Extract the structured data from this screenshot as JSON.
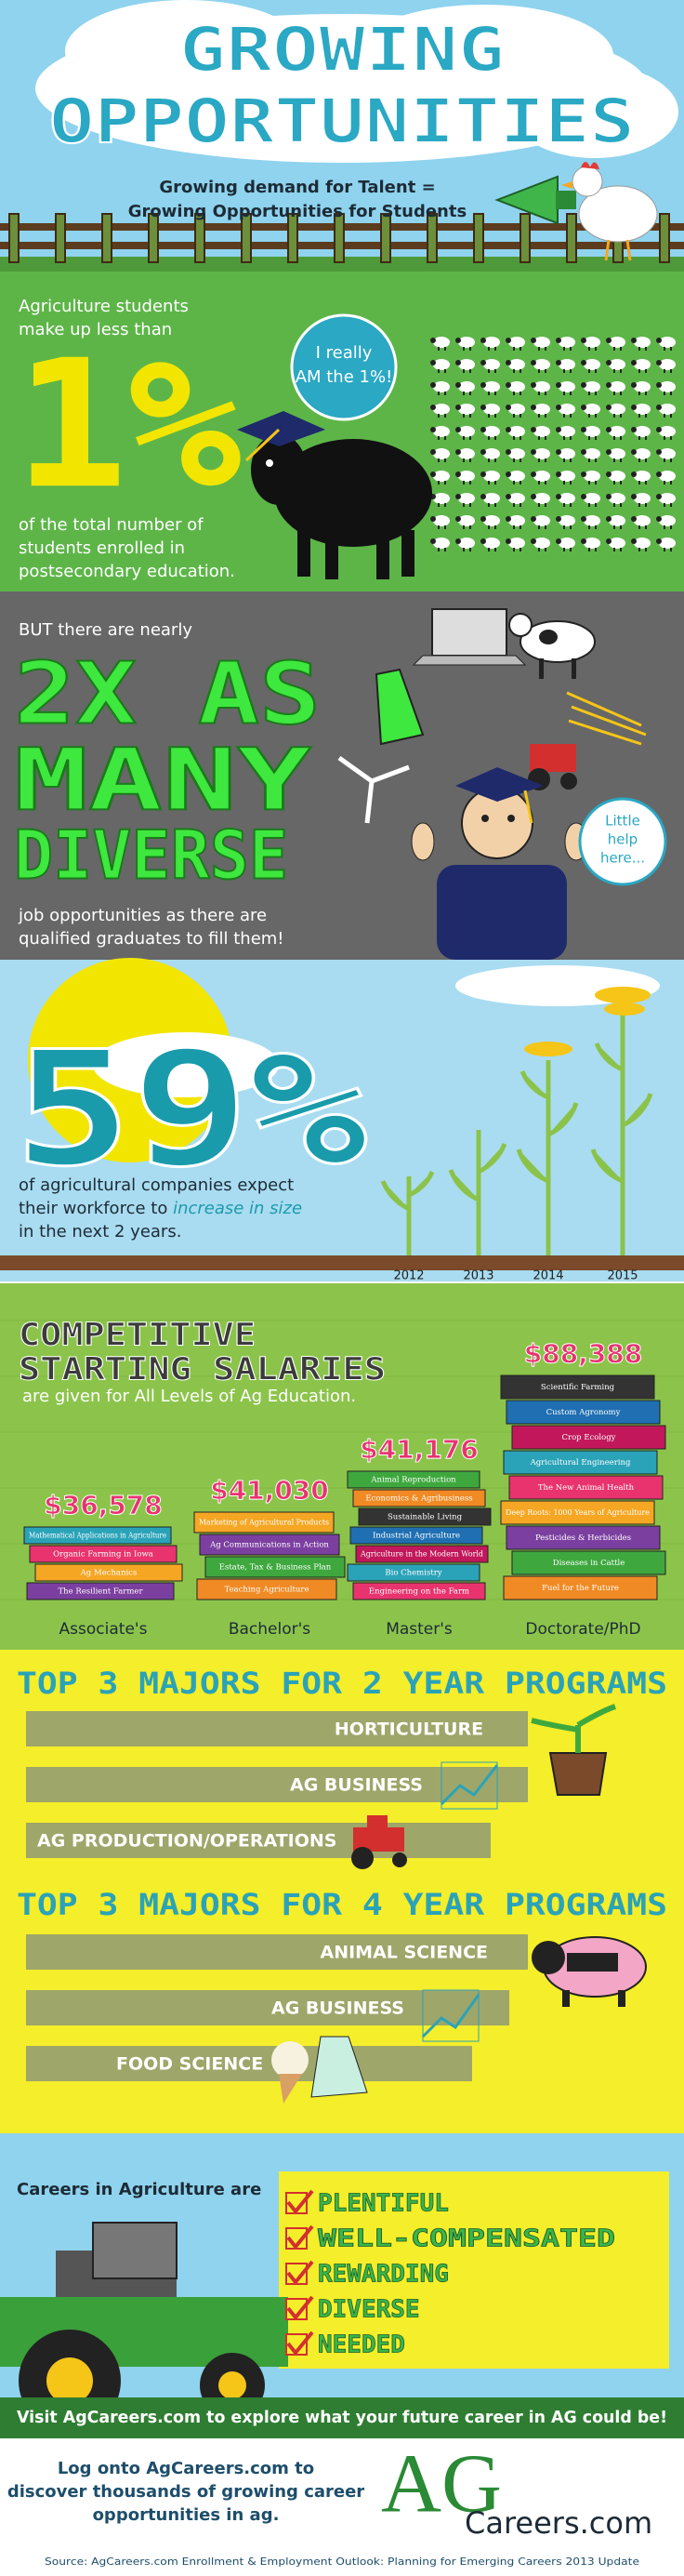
{
  "header": {
    "title_lines": [
      "GROWING",
      "OPPORTUNITIES"
    ],
    "subtitle_lines": [
      "Growing demand for Talent =",
      "Growing Opportunities for Students"
    ]
  },
  "one_percent": {
    "intro_lines": [
      "Agriculture students",
      "make up less than"
    ],
    "stat": "1%",
    "outro_lines": [
      "of the total number of",
      "students enrolled in",
      "postsecondary education."
    ],
    "bubble_lines": [
      "I really",
      "AM the 1%!"
    ]
  },
  "diverse": {
    "intro": "BUT there are nearly",
    "headline_lines": [
      "2X AS",
      "MANY",
      "DIVERSE"
    ],
    "outro_lines": [
      "job opportunities as there are",
      "qualified graduates to fill them!"
    ],
    "bubble_lines": [
      "Little",
      "help",
      "here..."
    ]
  },
  "growth": {
    "stat": "59%",
    "line_1": "of agricultural companies expect",
    "line_2_start": "their workforce to ",
    "line_2_emphasis": "increase in size",
    "line_3": "in the next 2 years.",
    "years": [
      "2012",
      "2013",
      "2014",
      "2015"
    ]
  },
  "salaries": {
    "title_lines": [
      "COMPETITIVE",
      "STARTING SALARIES"
    ],
    "subtitle": "are given for All Levels of Ag Education.",
    "levels": [
      {
        "label": "Associate's",
        "salary": "$36,578",
        "books": [
          "Mathematical Applications in Agriculture",
          "Organic Farming in Iowa",
          "Ag Mechanics",
          "The Resilient Farmer"
        ]
      },
      {
        "label": "Bachelor's",
        "salary": "$41,030",
        "books": [
          "Marketing of Agricultural Products",
          "Ag Communications in Action",
          "Estate, Tax & Business Plan",
          "Teaching Agriculture"
        ]
      },
      {
        "label": "Master's",
        "salary": "$41,176",
        "books": [
          "Animal Reproduction",
          "Economics & Agribusiness",
          "Sustainable Living",
          "Industrial Agriculture",
          "Agriculture in the Modern World",
          "Bio Chemistry",
          "Engineering on the Farm"
        ]
      },
      {
        "label": "Doctorate/PhD",
        "salary": "$88,388",
        "books": [
          "Scientific Farming",
          "Custom Agronomy",
          "Crop Ecology",
          "Agricultural Engineering",
          "The New Animal Health",
          "Deep Roots: 1000 Years of Agriculture",
          "Pesticides & Herbicides",
          "Diseases in Cattle",
          "Fuel for the Future"
        ]
      }
    ]
  },
  "majors": {
    "groups": [
      {
        "heading": "TOP 3 MAJORS FOR 2 YEAR PROGRAMS",
        "items": [
          "HORTICULTURE",
          "AG BUSINESS",
          "AG PRODUCTION/OPERATIONS"
        ]
      },
      {
        "heading": "TOP 3 MAJORS FOR 4 YEAR PROGRAMS",
        "items": [
          "ANIMAL SCIENCE",
          "AG BUSINESS",
          "FOOD SCIENCE"
        ]
      }
    ]
  },
  "careers": {
    "intro": "Careers in Agriculture are",
    "items": [
      "PLENTIFUL",
      "WELL-COMPENSATED",
      "REWARDING",
      "DIVERSE",
      "NEEDED"
    ],
    "banner": "Visit AgCareers.com to explore what your future career in AG could be!"
  },
  "footer": {
    "lines": [
      "Log onto AgCareers.com to",
      "discover thousands of growing career",
      "opportunities in ag."
    ],
    "logo_big": "AG",
    "logo_small": "Careers.com",
    "source": "Source: AgCareers.com Enrollment & Employment Outlook: Planning for Emerging Careers 2013 Update"
  }
}
